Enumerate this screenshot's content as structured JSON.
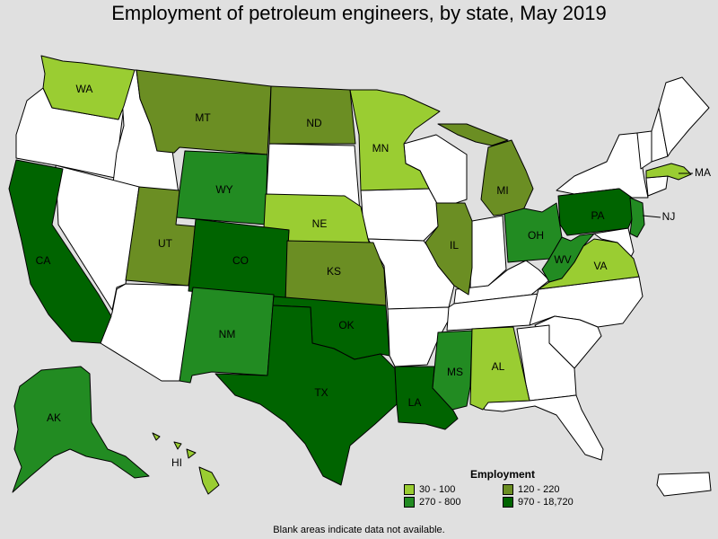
{
  "title": "Employment of petroleum engineers, by state, May 2019",
  "colors": {
    "background": "#e0e0e0",
    "nodata": "#ffffff",
    "bin1": "#9acd32",
    "bin2": "#6b8e23",
    "bin3": "#228b22",
    "bin4": "#006400"
  },
  "legend": {
    "title": "Employment",
    "items": [
      {
        "label": "30 - 100",
        "bin": "bin1"
      },
      {
        "label": "120 - 220",
        "bin": "bin2"
      },
      {
        "label": "270 - 800",
        "bin": "bin3"
      },
      {
        "label": "970 - 18,720",
        "bin": "bin4"
      }
    ]
  },
  "note": "Blank areas indicate data not available.",
  "state_labels": {
    "WA": "WA",
    "MT": "MT",
    "ND": "ND",
    "MN": "MN",
    "MI": "MI",
    "WY": "WY",
    "NE": "NE",
    "UT": "UT",
    "CO": "CO",
    "KS": "KS",
    "CA": "CA",
    "IL": "IL",
    "OH": "OH",
    "PA": "PA",
    "NJ": "NJ",
    "MA": "MA",
    "WV": "WV",
    "VA": "VA",
    "NM": "NM",
    "OK": "OK",
    "TX": "TX",
    "LA": "LA",
    "MS": "MS",
    "AL": "AL",
    "AK": "AK",
    "HI": "HI"
  },
  "chart_data": {
    "type": "choropleth",
    "title": "Employment of petroleum engineers, by state, May 2019",
    "bins": [
      "30 - 100",
      "120 - 220",
      "270 - 800",
      "970 - 18,720"
    ],
    "states": {
      "WA": "30 - 100",
      "MN": "30 - 100",
      "NE": "30 - 100",
      "MA": "30 - 100",
      "VA": "30 - 100",
      "AL": "30 - 100",
      "HI": "30 - 100",
      "MT": "120 - 220",
      "ND": "120 - 220",
      "UT": "120 - 220",
      "KS": "120 - 220",
      "IL": "120 - 220",
      "MI": "120 - 220",
      "WY": "270 - 800",
      "NM": "270 - 800",
      "OH": "270 - 800",
      "WV": "270 - 800",
      "NJ": "270 - 800",
      "MS": "270 - 800",
      "AK": "270 - 800",
      "CA": "970 - 18,720",
      "CO": "970 - 18,720",
      "OK": "970 - 18,720",
      "TX": "970 - 18,720",
      "LA": "970 - 18,720",
      "PA": "970 - 18,720"
    }
  }
}
